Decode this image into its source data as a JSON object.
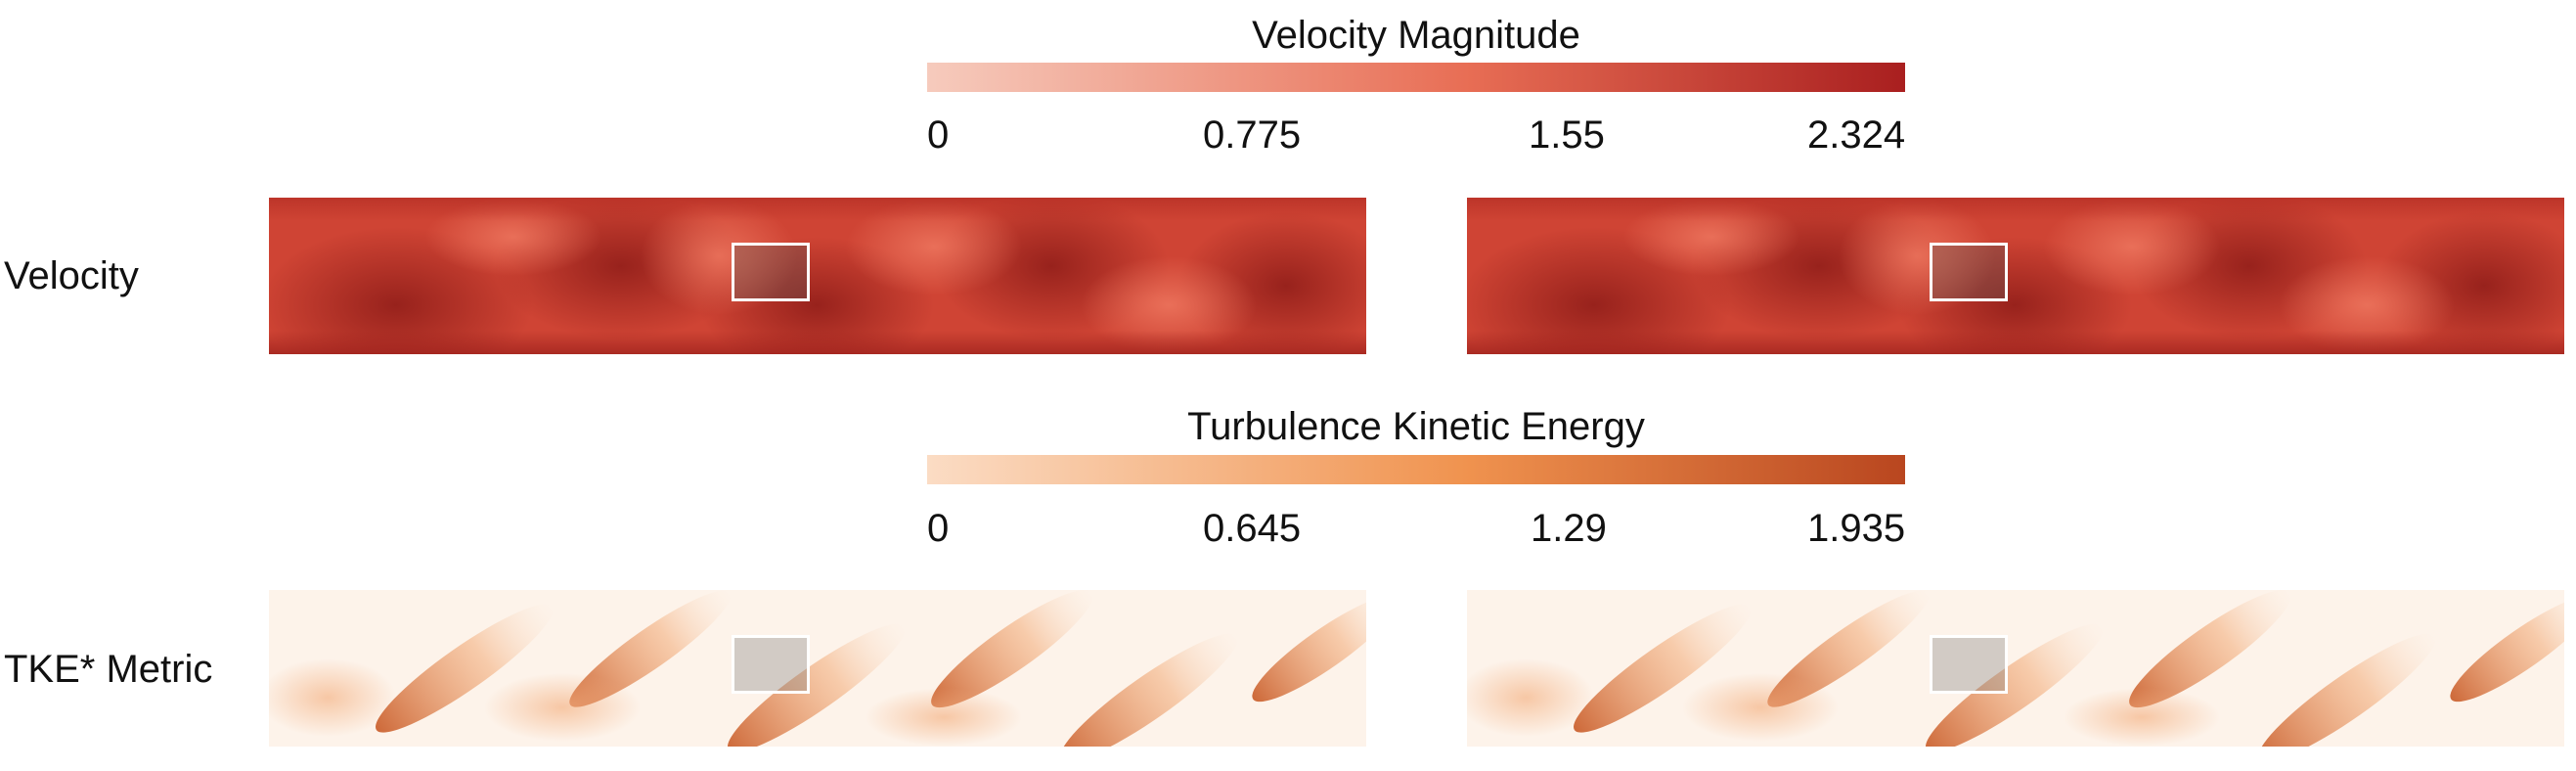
{
  "colorbars": {
    "velocity": {
      "title": "Velocity Magnitude",
      "ticks": [
        "0",
        "0.775",
        "1.55",
        "2.324"
      ],
      "colors": [
        "#f6cbbd",
        "#e86e55",
        "#a91f1f"
      ]
    },
    "tke": {
      "title": "Turbulence Kinetic Energy",
      "ticks": [
        "0",
        "0.645",
        "1.29",
        "1.935"
      ],
      "colors": [
        "#fbdcc4",
        "#f0934f",
        "#b9461f"
      ]
    }
  },
  "rows": {
    "velocity": {
      "label": "Velocity"
    },
    "tke": {
      "label": "TKE* Metric"
    }
  }
}
